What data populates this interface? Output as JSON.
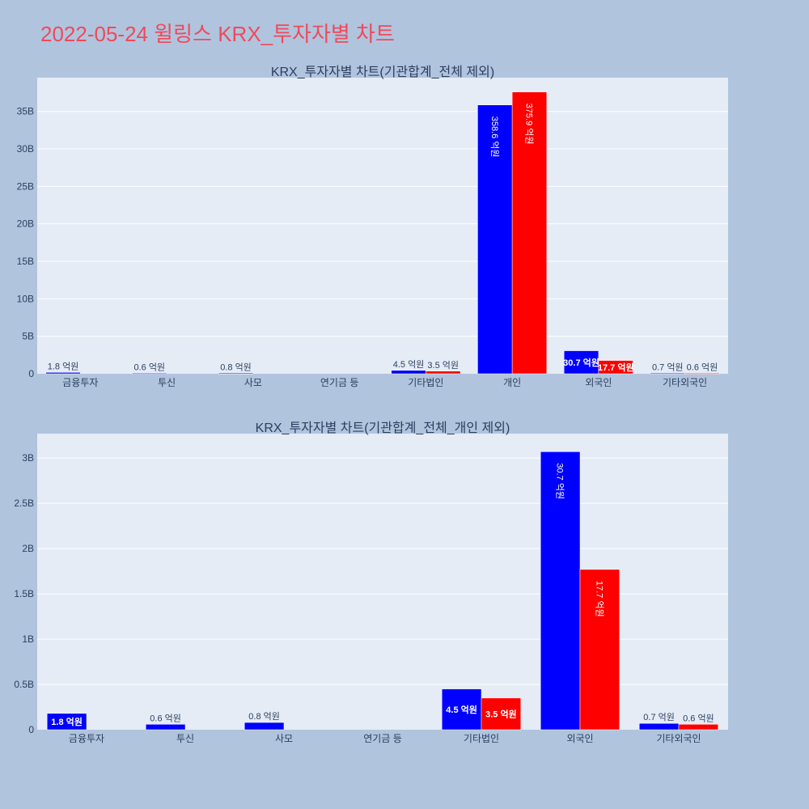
{
  "page_title": "2022-05-24 윌링스 KRX_투자자별 차트",
  "colors": {
    "buy": "#0000ff",
    "sell": "#ff0000",
    "plot_bg": "#e5ecf6",
    "page_bg": "#b0c4de",
    "title": "#ef4a5b"
  },
  "chart_data": [
    {
      "type": "bar",
      "title": "KRX_투자자별 차트(기관합계_전체 제외)",
      "categories": [
        "금융투자",
        "투신",
        "사모",
        "연기금 등",
        "기타법인",
        "개인",
        "외국인",
        "기타외국인"
      ],
      "ylim": [
        0,
        39500000000
      ],
      "yticks": [
        0,
        5000000000,
        10000000000,
        15000000000,
        20000000000,
        25000000000,
        30000000000,
        35000000000
      ],
      "ytick_labels": [
        "0",
        "5B",
        "10B",
        "15B",
        "20B",
        "25B",
        "30B",
        "35B"
      ],
      "series": [
        {
          "color": "#0000ff",
          "values": [
            180000000,
            60000000,
            80000000,
            null,
            450000000,
            35860000000,
            3070000000,
            70000000
          ],
          "labels": [
            "1.8 억원",
            "0.6 억원",
            "0.8 억원",
            null,
            "4.5 억원",
            "358.6 억원",
            "30.7 억원",
            "0.7 억원"
          ]
        },
        {
          "color": "#ff0000",
          "values": [
            null,
            null,
            null,
            null,
            350000000,
            37590000000,
            1770000000,
            60000000
          ],
          "labels": [
            null,
            null,
            null,
            null,
            "3.5 억원",
            "375.9 억원",
            "17.7 억원",
            "0.6 억원"
          ]
        }
      ],
      "grid": true
    },
    {
      "type": "bar",
      "title": "KRX_투자자별 차트(기관합계_전체_개인 제외)",
      "categories": [
        "금융투자",
        "투신",
        "사모",
        "연기금 등",
        "기타법인",
        "외국인",
        "기타외국인"
      ],
      "ylim": [
        0,
        3270000000
      ],
      "yticks": [
        0,
        500000000,
        1000000000,
        1500000000,
        2000000000,
        2500000000,
        3000000000
      ],
      "ytick_labels": [
        "0",
        "0.5B",
        "1B",
        "1.5B",
        "2B",
        "2.5B",
        "3B"
      ],
      "series": [
        {
          "color": "#0000ff",
          "values": [
            180000000,
            60000000,
            80000000,
            null,
            450000000,
            3070000000,
            70000000
          ],
          "labels": [
            "1.8 억원",
            "0.6 억원",
            "0.8 억원",
            null,
            "4.5 억원",
            "30.7 억원",
            "0.7 억원"
          ]
        },
        {
          "color": "#ff0000",
          "values": [
            null,
            null,
            null,
            null,
            350000000,
            1770000000,
            60000000
          ],
          "labels": [
            null,
            null,
            null,
            null,
            "3.5 억원",
            "17.7 억원",
            "0.6 억원"
          ]
        }
      ],
      "grid": true
    }
  ]
}
